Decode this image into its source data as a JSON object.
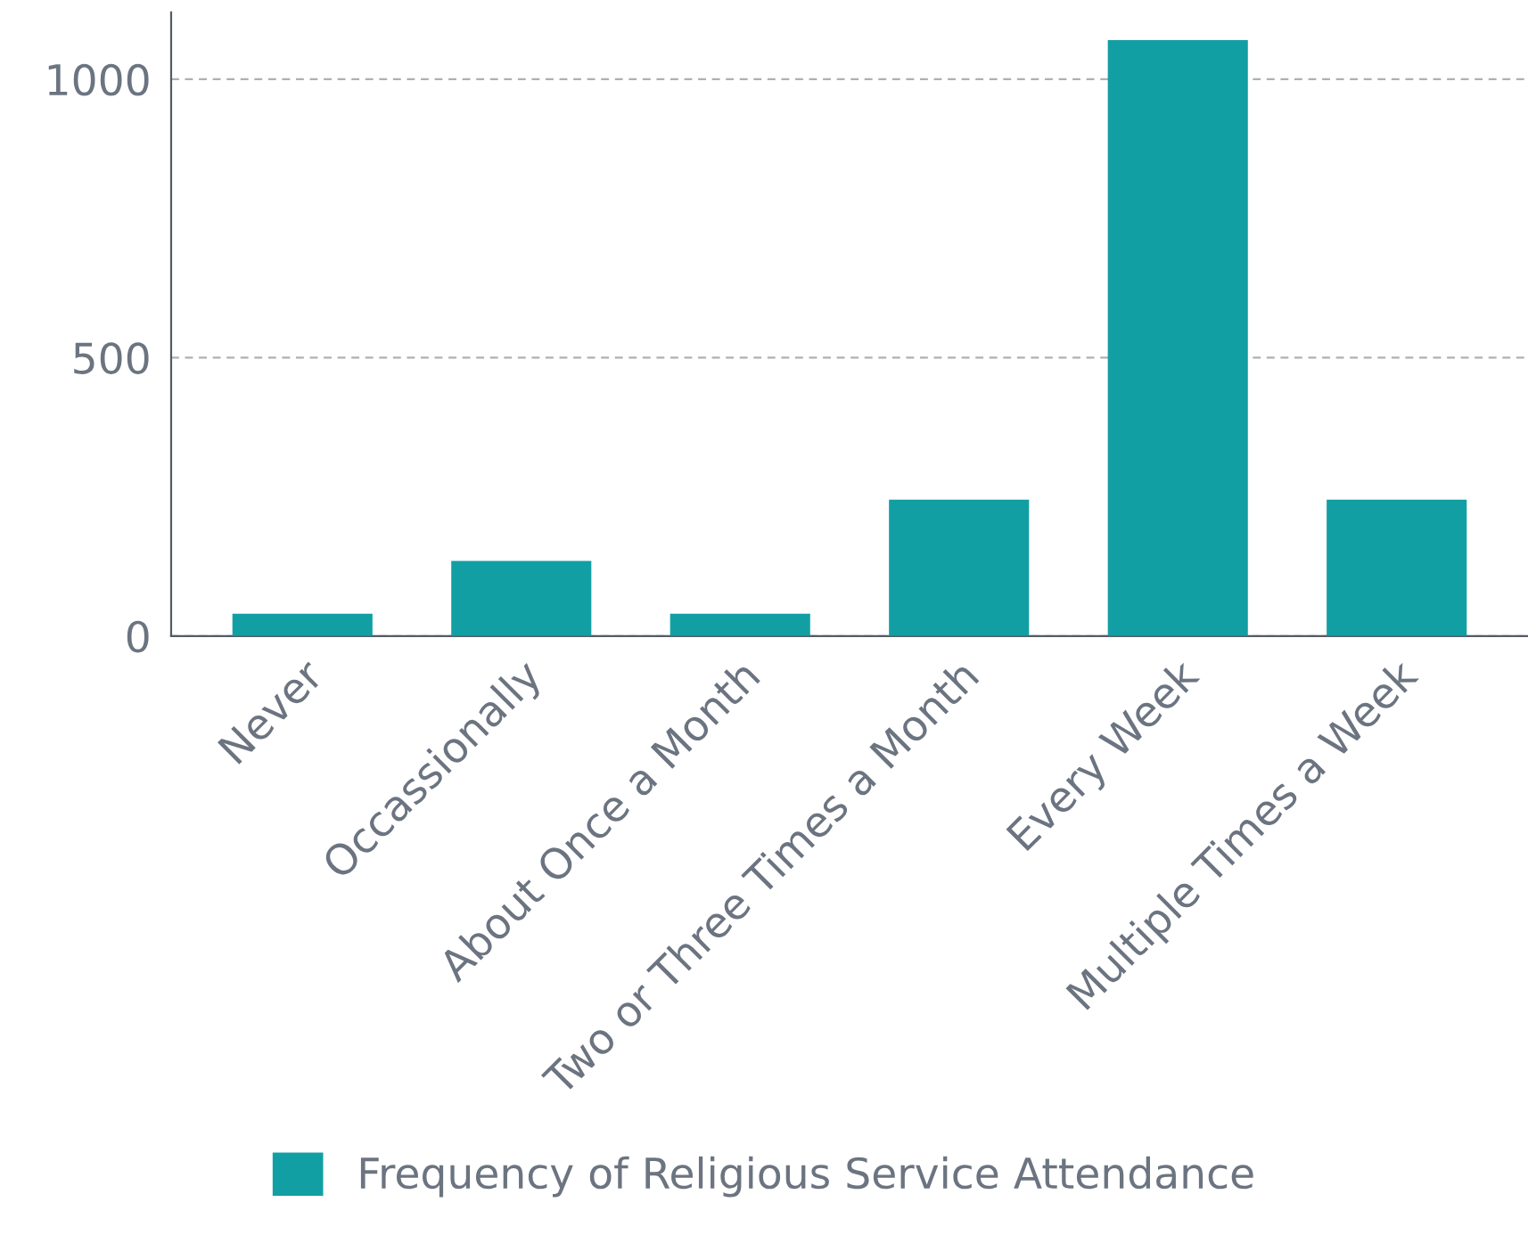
{
  "chart_data": {
    "type": "bar",
    "categories": [
      "Never",
      "Occassionally",
      "About Once a Month",
      "Two or Three Times a Month",
      "Every Week",
      "Multiple Times a Week"
    ],
    "series": [
      {
        "name": "Frequency of Religious Service Attendance",
        "color": "#119fa4",
        "values": [
          40,
          135,
          40,
          245,
          1070,
          245
        ]
      }
    ],
    "ylim": [
      0,
      1120
    ],
    "yticks": [
      0,
      500,
      1000
    ],
    "grid": "y",
    "legend": "bottom"
  }
}
